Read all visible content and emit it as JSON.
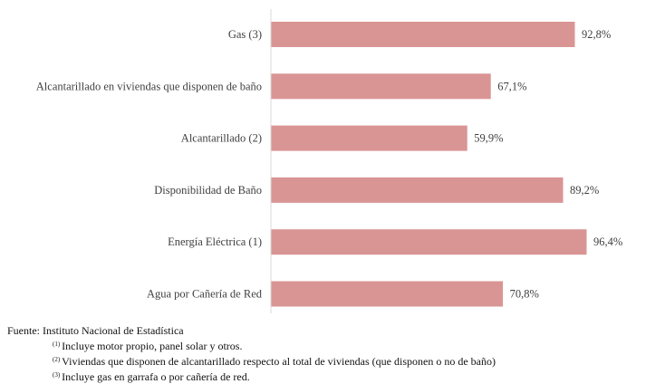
{
  "chart_data": {
    "type": "bar",
    "orientation": "horizontal",
    "categories": [
      "Gas (3)",
      "Alcantarillado en viviendas que disponen de baño",
      "Alcantarillado (2)",
      "Disponibilidad de Baño",
      "Energía Eléctrica (1)",
      "Agua por Cañería de Red"
    ],
    "values": [
      92.8,
      67.1,
      59.9,
      89.2,
      96.4,
      70.8
    ],
    "value_labels": [
      "92,8%",
      "67,1%",
      "59,9%",
      "89,2%",
      "96,4%",
      "70,8%"
    ],
    "xlim": [
      0,
      100
    ],
    "grid": false,
    "bar_color": "#d99594",
    "axis_color": "#d9d9d9"
  },
  "footer": {
    "source": "Fuente: Instituto Nacional de Estadística",
    "notes": [
      {
        "mark": "(1)",
        "text": "Incluye motor propio, panel solar y otros."
      },
      {
        "mark": "(2)",
        "text": "Viviendas que disponen de alcantarillado respecto al total de viviendas (que disponen o no de baño)"
      },
      {
        "mark": "(3)",
        "text": "Incluye gas en garrafa o por cañería de red."
      }
    ]
  }
}
